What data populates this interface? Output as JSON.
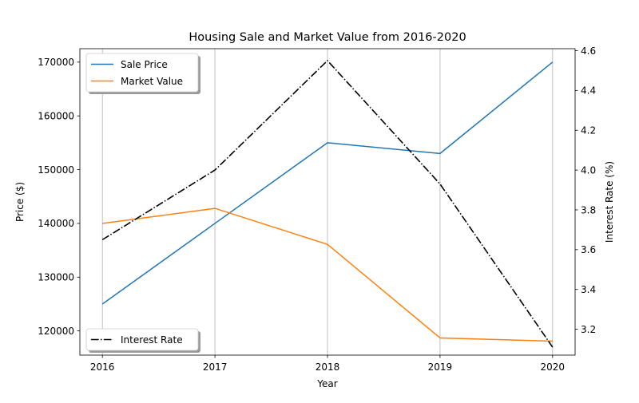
{
  "chart_data": {
    "type": "line",
    "title": "Housing Sale and Market Value from 2016-2020",
    "xlabel": "Year",
    "ylabel": "Price ($)",
    "y2label": "Interest Rate (%)",
    "categories": [
      "2016",
      "2017",
      "2018",
      "2019",
      "2020"
    ],
    "x": [
      2016,
      2017,
      2018,
      2019,
      2020
    ],
    "ylim": [
      115500,
      172500
    ],
    "y2lim": [
      3.07,
      4.61
    ],
    "yticks": [
      120000,
      130000,
      140000,
      150000,
      160000,
      170000
    ],
    "y2ticks": [
      3.2,
      3.4,
      3.6,
      3.8,
      4.0,
      4.2,
      4.4,
      4.6
    ],
    "y2tick_labels": [
      "3.2",
      "3.4",
      "3.6",
      "3.8",
      "4.0",
      "4.2",
      "4.4",
      "4.6"
    ],
    "grid": "vertical",
    "series": [
      {
        "name": "Sale Price",
        "axis": "left",
        "color": "#1f77b4",
        "dash": "solid",
        "values": [
          125000,
          140000,
          155000,
          153000,
          170000
        ]
      },
      {
        "name": "Market Value",
        "axis": "left",
        "color": "#ff7f0e",
        "dash": "solid",
        "values": [
          140000,
          142800,
          136100,
          118700,
          118100
        ]
      },
      {
        "name": "Interest Rate",
        "axis": "right",
        "color": "#000000",
        "dash": "dashdot",
        "values": [
          3.65,
          4.0,
          4.55,
          3.93,
          3.11
        ]
      }
    ],
    "legends": [
      {
        "placement": "upper-left",
        "entries": [
          "Sale Price",
          "Market Value"
        ]
      },
      {
        "placement": "lower-left",
        "entries": [
          "Interest Rate"
        ]
      }
    ]
  }
}
